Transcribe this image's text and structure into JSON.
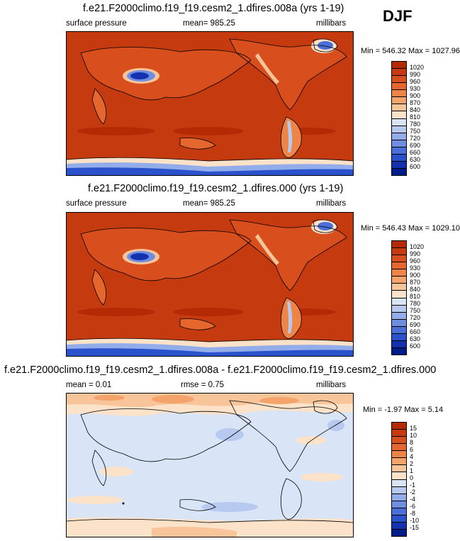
{
  "season": "DJF",
  "panels": [
    {
      "title": "f.e21.F2000climo.f19_f19.cesm2_1.dfires.008a (yrs 1-19)",
      "left": "surface pressure",
      "center": "mean= 985.25",
      "right": "millibars",
      "minmax": "Min = 546.32 Max = 1027.96"
    },
    {
      "title": "f.e21.F2000climo.f19_f19.cesm2_1.dfires.000 (yrs 1-19)",
      "left": "surface pressure",
      "center": "mean= 985.25",
      "right": "millibars",
      "minmax": "Min = 546.43 Max = 1029.10"
    },
    {
      "title": "f.e21.F2000climo.f19_f19.cesm2_1.dfires.008a - f.e21.F2000climo.f19_f19.cesm2_1.dfires.000",
      "left": "mean =  0.01",
      "center": "rmse =  0.75",
      "right": "millibars",
      "minmax": "Min = -1.97 Max =  5.14"
    }
  ],
  "colorbars": {
    "abs": {
      "labels": [
        "1020",
        "990",
        "960",
        "930",
        "900",
        "870",
        "840",
        "810",
        "780",
        "750",
        "720",
        "690",
        "660",
        "630",
        "600"
      ],
      "colors": [
        "#b52a05",
        "#c8390d",
        "#d84e1c",
        "#e5672d",
        "#ee8445",
        "#f4a36b",
        "#f8c49a",
        "#fbe2c9",
        "#d9e4f6",
        "#b8c9f0",
        "#93acea",
        "#6f8ee2",
        "#4a6fd9",
        "#2a52cc",
        "#1432b0",
        "#001c8a"
      ]
    },
    "diff": {
      "labels": [
        "15",
        "10",
        "8",
        "6",
        "4",
        "2",
        "1",
        "0",
        "-1",
        "-2",
        "-4",
        "-6",
        "-8",
        "-10",
        "-15"
      ],
      "colors": [
        "#b52a05",
        "#c8390d",
        "#d84e1c",
        "#e5672d",
        "#ee8445",
        "#f4a36b",
        "#f8c49a",
        "#fbe2c9",
        "#d9e4f6",
        "#b8c9f0",
        "#93acea",
        "#6f8ee2",
        "#4a6fd9",
        "#2a52cc",
        "#1432b0",
        "#001c8a"
      ]
    }
  }
}
